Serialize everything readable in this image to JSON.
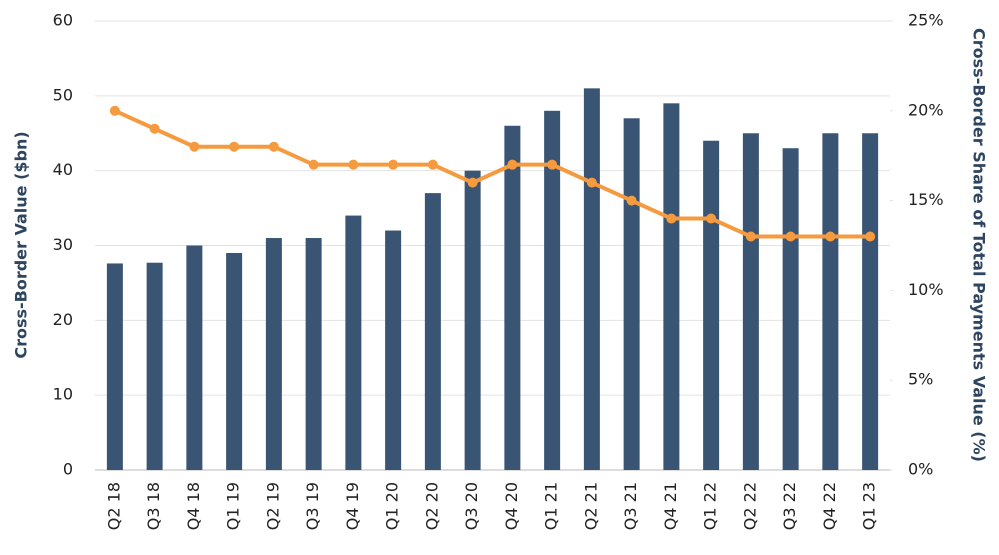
{
  "chart_data": {
    "type": "bar",
    "categories": [
      "Q2 18",
      "Q3 18",
      "Q4 18",
      "Q1 19",
      "Q2 19",
      "Q3 19",
      "Q4 19",
      "Q1 20",
      "Q2 20",
      "Q3 20",
      "Q4 20",
      "Q1 21",
      "Q2 21",
      "Q3 21",
      "Q4 21",
      "Q1 22",
      "Q2 22",
      "Q3 22",
      "Q4 22",
      "Q1 23"
    ],
    "series": [
      {
        "name": "Cross-Border Value ($bn)",
        "type": "bar",
        "color": "#3a5573",
        "values": [
          27.6,
          27.7,
          30,
          29,
          31,
          31,
          34,
          32,
          37,
          40,
          46,
          48,
          51,
          47,
          49,
          44,
          45,
          43,
          45,
          45
        ]
      },
      {
        "name": "Cross-Border Share of Total Payments Value (%)",
        "type": "line",
        "axis": "y2",
        "color": "#f59a3e",
        "values": [
          20,
          19,
          18,
          18,
          18,
          17,
          17,
          17,
          17,
          16,
          17,
          17,
          16,
          15,
          14,
          14,
          13,
          13,
          13,
          13
        ]
      }
    ],
    "y_label": "Cross-Border Value ($bn)",
    "y2_label": "Cross-Border Share of Total Payments Value (%)",
    "ylim": [
      0,
      60
    ],
    "yticks": [
      0,
      10,
      20,
      30,
      40,
      50,
      60
    ],
    "y2lim": [
      0,
      25
    ],
    "y2ticks": [
      {
        "value": 0,
        "label": "0%"
      },
      {
        "value": 5,
        "label": "5%"
      },
      {
        "value": 10,
        "label": "10%"
      },
      {
        "value": 15,
        "label": "15%"
      },
      {
        "value": 20,
        "label": "20%"
      },
      {
        "value": 25,
        "label": "25%"
      }
    ],
    "grid": true
  }
}
